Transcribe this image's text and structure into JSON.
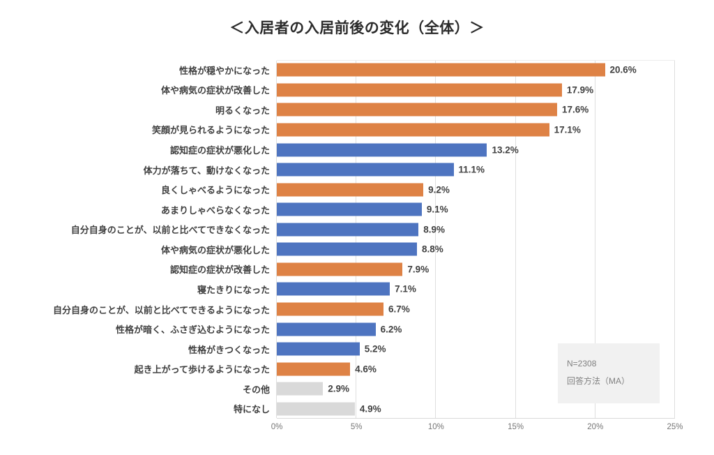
{
  "chart_data": {
    "type": "bar",
    "orientation": "horizontal",
    "title": "＜入居者の入居前後の変化（全体）＞",
    "categories": [
      "性格が穏やかになった",
      "体や病気の症状が改善した",
      "明るくなった",
      "笑顔が見られるようになった",
      "認知症の症状が悪化した",
      "体力が落ちて、動けなくなった",
      "良くしゃべるようになった",
      "あまりしゃべらなくなった",
      "自分自身のことが、以前と比べてできなくなった",
      "体や病気の症状が悪化した",
      "認知症の症状が改善した",
      "寝たきりになった",
      "自分自身のことが、以前と比べてできるようになった",
      "性格が暗く、ふさぎ込むようになった",
      "性格がきつくなった",
      "起き上がって歩けるようになった",
      "その他",
      "特になし"
    ],
    "values": [
      20.6,
      17.9,
      17.6,
      17.1,
      13.2,
      11.1,
      9.2,
      9.1,
      8.9,
      8.8,
      7.9,
      7.1,
      6.7,
      6.2,
      5.2,
      4.6,
      2.9,
      4.9
    ],
    "value_labels": [
      "20.6%",
      "17.9%",
      "17.6%",
      "17.1%",
      "13.2%",
      "11.1%",
      "9.2%",
      "9.1%",
      "8.9%",
      "8.8%",
      "7.9%",
      "7.1%",
      "6.7%",
      "6.2%",
      "5.2%",
      "4.6%",
      "2.9%",
      "4.9%"
    ],
    "bar_colors": [
      "orange",
      "orange",
      "orange",
      "orange",
      "blue",
      "blue",
      "orange",
      "blue",
      "blue",
      "blue",
      "orange",
      "blue",
      "orange",
      "blue",
      "blue",
      "orange",
      "gray",
      "gray"
    ],
    "palette": {
      "orange": "#de8245",
      "blue": "#4e74c0",
      "gray": "#d9d9d9"
    },
    "xlim": [
      0,
      25
    ],
    "x_ticks": [
      "0%",
      "5%",
      "10%",
      "15%",
      "20%",
      "25%"
    ],
    "grid": "vertical",
    "legend": "none",
    "annotation": {
      "line1": "N=2308",
      "line2": "回答方法（MA）"
    }
  }
}
